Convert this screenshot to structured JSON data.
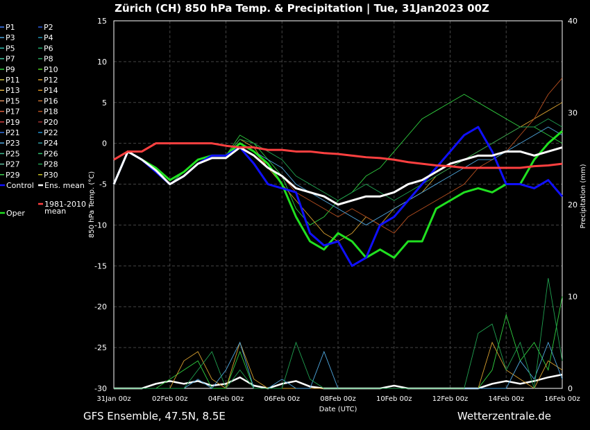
{
  "chart_data": {
    "type": "line",
    "title": "Zürich  (CH)  850 hPa Temp. & Precipitation | Tue, 31Jan2023 00Z",
    "ylabel": "850 hPa Temp. (°C)",
    "y2label": "Precipitation (mm)",
    "xlabel": "Date (UTC)",
    "ylim": [
      -30,
      15
    ],
    "y2lim": [
      0,
      40
    ],
    "xlim": [
      0,
      16
    ],
    "x_ticks": [
      "31Jan 00z",
      "02Feb 00z",
      "04Feb 00z",
      "06Feb 00z",
      "08Feb 00z",
      "10Feb 00z",
      "12Feb 00z",
      "14Feb 00z",
      "16Feb 00z"
    ],
    "y_ticks": [
      "15",
      "10",
      "5",
      "0",
      "-5",
      "-10",
      "-15",
      "-20",
      "-25",
      "-30"
    ],
    "y2_ticks": [
      "40",
      "30",
      "20",
      "10",
      "0"
    ],
    "legend_placement": "left",
    "legend": [
      {
        "name": "P1",
        "color": "#3f7fff"
      },
      {
        "name": "P2",
        "color": "#2a5fe0"
      },
      {
        "name": "P3",
        "color": "#4aa0d8"
      },
      {
        "name": "P4",
        "color": "#1f8fb0"
      },
      {
        "name": "P5",
        "color": "#30c0b0"
      },
      {
        "name": "P6",
        "color": "#20b070"
      },
      {
        "name": "P7",
        "color": "#40c8a0"
      },
      {
        "name": "P8",
        "color": "#28a860"
      },
      {
        "name": "P9",
        "color": "#30d040"
      },
      {
        "name": "P10",
        "color": "#50d020"
      },
      {
        "name": "P11",
        "color": "#c8c040"
      },
      {
        "name": "P12",
        "color": "#d8a030"
      },
      {
        "name": "P13",
        "color": "#e0b040"
      },
      {
        "name": "P14",
        "color": "#d89020"
      },
      {
        "name": "P15",
        "color": "#e09060"
      },
      {
        "name": "P16",
        "color": "#c87030"
      },
      {
        "name": "P17",
        "color": "#e06040"
      },
      {
        "name": "P18",
        "color": "#b85020"
      },
      {
        "name": "P19",
        "color": "#d04040"
      },
      {
        "name": "P20",
        "color": "#a03030"
      },
      {
        "name": "P21",
        "color": "#3070e0"
      },
      {
        "name": "P22",
        "color": "#2090d0"
      },
      {
        "name": "P23",
        "color": "#50a8e0"
      },
      {
        "name": "P24",
        "color": "#3098a0"
      },
      {
        "name": "P25",
        "color": "#40b890"
      },
      {
        "name": "P26",
        "color": "#30c070"
      },
      {
        "name": "P27",
        "color": "#60c0a0"
      },
      {
        "name": "P28",
        "color": "#20a050"
      },
      {
        "name": "P29",
        "color": "#40d050"
      },
      {
        "name": "P30",
        "color": "#c8c020"
      },
      {
        "name": "Control",
        "color": "#1010ff"
      },
      {
        "name": "Ens. mean",
        "color": "#ffffff"
      },
      {
        "name": "1981-2010 mean",
        "color": "#ff4040"
      },
      {
        "name": "Oper",
        "color": "#20e020"
      }
    ],
    "x": [
      0,
      0.5,
      1,
      1.5,
      2,
      2.5,
      3,
      3.5,
      4,
      4.5,
      5,
      5.5,
      6,
      6.5,
      7,
      7.5,
      8,
      8.5,
      9,
      9.5,
      10,
      10.5,
      11,
      11.5,
      12,
      12.5,
      13,
      13.5,
      14,
      14.5,
      15,
      15.5,
      16
    ],
    "series": [
      {
        "name": "Oper",
        "color": "#20e020",
        "values": [
          -5,
          -1,
          -2,
          -3,
          -4.5,
          -3.5,
          -2,
          -1.5,
          -1.5,
          0,
          -1,
          -2.5,
          -5,
          -9,
          -12,
          -13,
          -11,
          -12,
          -14,
          -13,
          -14,
          -12,
          -12,
          -8,
          -7,
          -6,
          -5.5,
          -6,
          -5,
          -5,
          -2,
          0,
          1.5
        ]
      },
      {
        "name": "Control",
        "color": "#1010ff",
        "values": [
          -5,
          -1,
          -2,
          -3.5,
          -5,
          -4,
          -2.5,
          -1.5,
          -1.5,
          -0.5,
          -2.5,
          -5,
          -5.5,
          -6,
          -11,
          -12.5,
          -12,
          -15,
          -14,
          -10,
          -9,
          -7,
          -5,
          -3,
          -1,
          1,
          2,
          -1,
          -5,
          -5,
          -5.5,
          -4.5,
          -6.5
        ]
      },
      {
        "name": "Ens. mean",
        "color": "#ffffff",
        "values": [
          -5,
          -1,
          -2,
          -3.3,
          -5,
          -4,
          -2.5,
          -1.8,
          -1.8,
          -0.5,
          -1.5,
          -3,
          -4,
          -5.5,
          -6,
          -6.5,
          -7.5,
          -7,
          -6.5,
          -6.5,
          -6,
          -5,
          -4.5,
          -3.5,
          -2.5,
          -2,
          -1.5,
          -1.5,
          -1,
          -1,
          -1.5,
          -1,
          -0.5
        ]
      },
      {
        "name": "1981-2010 mean",
        "color": "#ff4040",
        "values": [
          -2,
          -1,
          -1,
          0,
          0,
          0,
          0,
          0,
          -0.3,
          -0.5,
          -0.5,
          -0.8,
          -0.8,
          -1,
          -1,
          -1.2,
          -1.3,
          -1.5,
          -1.7,
          -1.8,
          -2,
          -2.3,
          -2.5,
          -2.7,
          -2.8,
          -3,
          -3,
          -3,
          -3,
          -3,
          -2.8,
          -2.7,
          -2.5
        ]
      },
      {
        "name": "P9",
        "color": "#30d040",
        "values": [
          -5,
          -1,
          -2,
          -3,
          -4.5,
          -3.5,
          -2,
          -1.5,
          -1.5,
          1,
          0,
          -2,
          -4,
          -8,
          -10,
          -9,
          -7,
          -6,
          -4,
          -3,
          -1,
          1,
          3,
          4,
          5,
          6,
          5,
          4,
          3,
          2,
          2,
          1,
          0
        ]
      },
      {
        "name": "P12",
        "color": "#d8a030",
        "values": [
          -5,
          -1,
          -2,
          -3,
          -5,
          -3.5,
          -2,
          -1.5,
          -1.5,
          0.5,
          -0.5,
          -3,
          -5,
          -7,
          -9,
          -11,
          -12,
          -11,
          -9,
          -10,
          -8,
          -7,
          -6,
          -4,
          -3,
          -2,
          -1,
          0,
          1,
          2,
          3,
          4,
          5
        ]
      },
      {
        "name": "P18",
        "color": "#b85020",
        "values": [
          -5,
          -1,
          -2,
          -3,
          -5,
          -3.5,
          -2,
          -1.5,
          -1.5,
          0,
          -1,
          -3,
          -4,
          -6,
          -7,
          -8,
          -9,
          -8,
          -9,
          -10,
          -11,
          -9,
          -8,
          -7,
          -6,
          -5,
          -3,
          -2,
          -1,
          1,
          3,
          6,
          8
        ]
      },
      {
        "name": "P23",
        "color": "#50a8e0",
        "values": [
          -5,
          -1,
          -2,
          -3,
          -5,
          -3.5,
          -2,
          -1.5,
          -1.5,
          0,
          -1,
          -2,
          -3,
          -5,
          -6,
          -7,
          -8,
          -9,
          -10,
          -9,
          -8,
          -7,
          -6,
          -5,
          -4,
          -3,
          -2,
          -2,
          -1,
          0,
          1,
          2,
          1
        ]
      },
      {
        "name": "P28",
        "color": "#20a050",
        "values": [
          -5,
          -1,
          -2,
          -3,
          -5,
          -3.5,
          -2,
          -1.5,
          -1.5,
          0.5,
          0,
          -1,
          -2,
          -4,
          -5,
          -6,
          -7,
          -6,
          -5,
          -6,
          -7,
          -6,
          -5,
          -4,
          -3,
          -2,
          -1,
          0,
          1,
          2,
          2,
          3,
          2
        ]
      }
    ],
    "precip_series": [
      {
        "name": "Ens. mean precip",
        "color": "#ffffff",
        "values": [
          0,
          0,
          0,
          0.5,
          0.8,
          0.5,
          0.8,
          0.3,
          0.5,
          1.2,
          0.3,
          0,
          0.5,
          0.8,
          0.2,
          0,
          0,
          0,
          0,
          0,
          0.3,
          0,
          0,
          0,
          0,
          0,
          0,
          0.5,
          0.8,
          0.5,
          0.8,
          1.2,
          1.5
        ]
      },
      {
        "name": "P9 precip",
        "color": "#30d040",
        "values": [
          0,
          0,
          0,
          0,
          1,
          2,
          3,
          0,
          0,
          4,
          0,
          0,
          0,
          0,
          0,
          0,
          0,
          0,
          0,
          0,
          0,
          0,
          0,
          0,
          0,
          0,
          0,
          2,
          8,
          3,
          5,
          2,
          10
        ]
      },
      {
        "name": "P12 precip",
        "color": "#d8a030",
        "values": [
          0,
          0,
          0,
          0,
          0,
          3,
          4,
          1,
          0,
          5,
          1,
          0,
          0,
          0,
          0,
          0,
          0,
          0,
          0,
          0,
          0,
          0,
          0,
          0,
          0,
          0,
          0,
          5,
          2,
          1,
          0,
          3,
          2
        ]
      },
      {
        "name": "P23 precip",
        "color": "#50a8e0",
        "values": [
          0,
          0,
          0,
          0,
          0,
          0,
          1,
          0,
          2,
          5,
          0,
          0,
          1,
          0,
          0,
          4,
          0,
          0,
          0,
          0,
          0,
          0,
          0,
          0,
          0,
          0,
          0,
          0,
          0,
          3,
          1,
          5,
          1
        ]
      },
      {
        "name": "P28 precip",
        "color": "#20a050",
        "values": [
          0,
          0,
          0,
          0,
          0,
          0,
          2,
          4,
          0,
          2,
          0,
          0,
          0,
          5,
          1,
          0,
          0,
          0,
          0,
          0,
          0,
          0,
          0,
          0,
          0,
          0,
          6,
          7,
          2,
          5,
          0,
          12,
          3
        ]
      }
    ]
  },
  "footer": {
    "left": "GFS Ensemble, 47.5N, 8.5E",
    "right": "Wetterzentrale.de"
  }
}
